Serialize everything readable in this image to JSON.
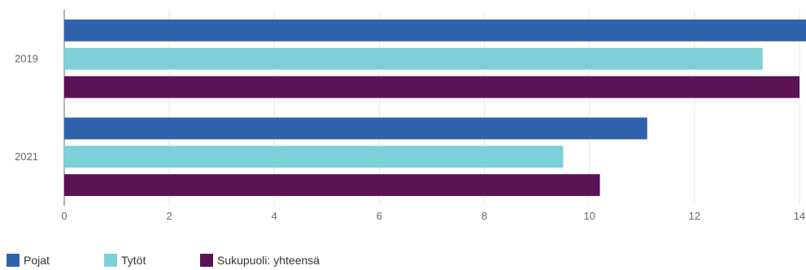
{
  "chart_data": {
    "type": "bar",
    "orientation": "horizontal",
    "title": "",
    "xlabel": "",
    "ylabel": "",
    "categories": [
      "2019",
      "2021"
    ],
    "xlim": [
      0,
      14
    ],
    "xticks": [
      0,
      2,
      4,
      6,
      8,
      10,
      12,
      14
    ],
    "grid": true,
    "legend_position": "bottom-left",
    "series": [
      {
        "name": "Pojat",
        "color": "#3063ae",
        "values": [
          14.2,
          11.1
        ]
      },
      {
        "name": "Tytöt",
        "color": "#7dd0d8",
        "values": [
          13.3,
          9.5
        ]
      },
      {
        "name": "Sukupuoli: yhteensä",
        "color": "#5a1455",
        "values": [
          14.0,
          10.2
        ]
      }
    ]
  }
}
